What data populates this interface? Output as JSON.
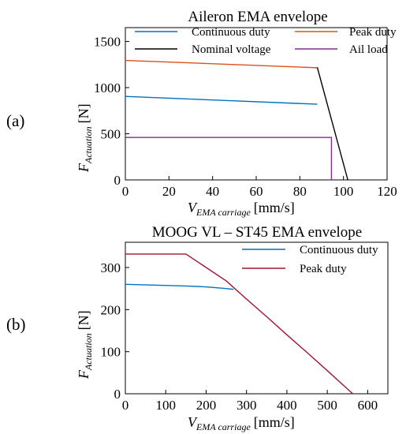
{
  "chart_data": [
    {
      "panel": "(a)",
      "type": "line",
      "title": "Aileron EMA envelope",
      "xlabel": {
        "symbol": "V",
        "subscript": "EMA carriage",
        "unit": "[mm/s]"
      },
      "ylabel": {
        "symbol": "F",
        "subscript": "Actuation",
        "unit": "[N]"
      },
      "xlim": [
        0,
        120
      ],
      "ylim": [
        0,
        1650
      ],
      "xticks": [
        0,
        20,
        40,
        60,
        80,
        100,
        120
      ],
      "yticks": [
        0,
        500,
        1000,
        1500
      ],
      "legend_columns": 2,
      "legend_placement": "top",
      "series": [
        {
          "name": "Continuous duty",
          "color": "#0072BD",
          "points": [
            [
              0,
              905
            ],
            [
              88,
              820
            ]
          ]
        },
        {
          "name": "Peak duty",
          "color": "#D95319",
          "points": [
            [
              0,
              1295
            ],
            [
              88,
              1215
            ]
          ]
        },
        {
          "name": "Nominal voltage",
          "color": "#000000",
          "points": [
            [
              88,
              1220
            ],
            [
              102,
              0
            ]
          ]
        },
        {
          "name": "Ail load",
          "color": "#7E2F8E",
          "points": [
            [
              0,
              460
            ],
            [
              94.5,
              460
            ],
            [
              94.5,
              0
            ]
          ]
        }
      ]
    },
    {
      "panel": "(b)",
      "type": "line",
      "title": "MOOG VL – ST45 EMA envelope",
      "xlabel": {
        "symbol": "V",
        "subscript": "EMA carriage",
        "unit": "[mm/s]"
      },
      "ylabel": {
        "symbol": "F",
        "subscript": "Actuation",
        "unit": "[N]"
      },
      "xlim": [
        0,
        650
      ],
      "ylim": [
        0,
        360
      ],
      "xticks": [
        0,
        100,
        200,
        300,
        400,
        500,
        600
      ],
      "yticks": [
        0,
        100,
        200,
        300
      ],
      "legend_columns": 1,
      "legend_placement": "top-right",
      "series": [
        {
          "name": "Continuous duty",
          "color": "#0072BD",
          "points": [
            [
              0,
              260
            ],
            [
              150,
              256
            ],
            [
              200,
              254
            ],
            [
              250,
              250
            ],
            [
              268,
              248
            ]
          ]
        },
        {
          "name": "Peak duty",
          "color": "#A2142F",
          "points": [
            [
              0,
              332
            ],
            [
              150,
              332
            ],
            [
              200,
              300
            ],
            [
              250,
              268
            ],
            [
              300,
              225
            ],
            [
              350,
              183
            ],
            [
              400,
              140
            ],
            [
              450,
              98
            ],
            [
              500,
              55
            ],
            [
              563,
              0
            ]
          ]
        }
      ]
    }
  ]
}
